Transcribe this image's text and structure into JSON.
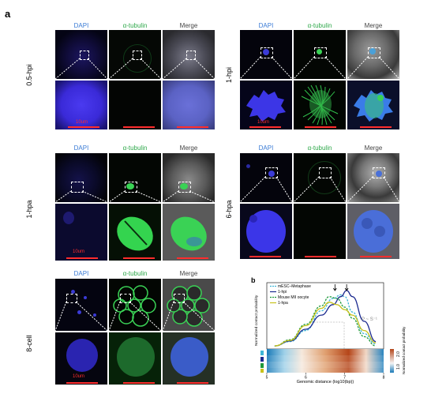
{
  "figure": {
    "letter_a": "a",
    "letter_b": "b",
    "channels": {
      "dapi": "DAPI",
      "tubulin": "α-tubulin",
      "merge": "Merge"
    },
    "scale_label": "10um",
    "groups": [
      {
        "label": "0.5-hpi"
      },
      {
        "label": "1-hpi"
      },
      {
        "label": "1-hpa"
      },
      {
        "label": "6-hpa"
      },
      {
        "label": "8-cell"
      }
    ]
  },
  "chart_data": {
    "type": "line",
    "xlabel": "Genomic distance (log10(bp))",
    "ylabel": "Normalized contact probability",
    "colorbar_label": "Normalized contact probability",
    "colorbar_ticks": [
      "1.0",
      "2.0"
    ],
    "annotation": "P ~ S⁻¹",
    "xticks": [
      "5",
      "6",
      "7",
      "8"
    ],
    "xlim": [
      5,
      8
    ],
    "series": [
      {
        "name": "mESC–Metaphase",
        "color": "#3fb6d6",
        "dashed": true,
        "x": [
          5.2,
          5.6,
          6.0,
          6.4,
          6.7,
          6.9,
          7.0,
          7.2,
          7.5,
          7.8
        ],
        "y": [
          0.05,
          0.12,
          0.3,
          0.62,
          0.82,
          0.88,
          0.85,
          0.6,
          0.25,
          0.08
        ]
      },
      {
        "name": "1-hpi",
        "color": "#1b2a8f",
        "dashed": false,
        "x": [
          5.2,
          5.6,
          6.0,
          6.4,
          6.7,
          6.9,
          7.05,
          7.2,
          7.5,
          7.8
        ],
        "y": [
          0.05,
          0.13,
          0.32,
          0.55,
          0.72,
          0.85,
          0.95,
          0.85,
          0.45,
          0.12
        ]
      },
      {
        "name": "Mouse MII oocyte",
        "color": "#1f9a3a",
        "dashed": true,
        "x": [
          5.2,
          5.6,
          6.0,
          6.4,
          6.6,
          6.8,
          7.0,
          7.2,
          7.5,
          7.8
        ],
        "y": [
          0.05,
          0.15,
          0.4,
          0.7,
          0.85,
          0.82,
          0.68,
          0.5,
          0.2,
          0.05
        ]
      },
      {
        "name": "1-hpa",
        "color": "#c8c21a",
        "dashed": false,
        "x": [
          5.2,
          5.6,
          6.0,
          6.4,
          6.6,
          6.8,
          7.0,
          7.2,
          7.5,
          7.8
        ],
        "y": [
          0.05,
          0.14,
          0.38,
          0.66,
          0.76,
          0.72,
          0.64,
          0.55,
          0.3,
          0.1
        ]
      }
    ],
    "heatmap_rows": 4,
    "arrows_x": [
      6.75,
      7.05
    ]
  }
}
